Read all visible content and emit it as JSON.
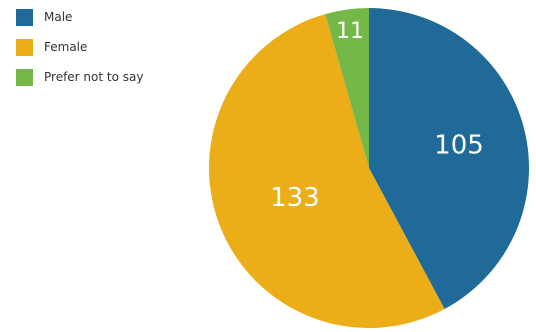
{
  "chart_data": {
    "type": "pie",
    "title": "",
    "legend_position": "top-left",
    "slices": [
      {
        "label": "Male",
        "value": 105,
        "color": "#1f6a98"
      },
      {
        "label": "Female",
        "value": 133,
        "color": "#ebad18"
      },
      {
        "label": "Prefer not to say",
        "value": 11,
        "color": "#75b84a"
      }
    ],
    "data_labels": [
      "105",
      "133",
      "11"
    ]
  }
}
